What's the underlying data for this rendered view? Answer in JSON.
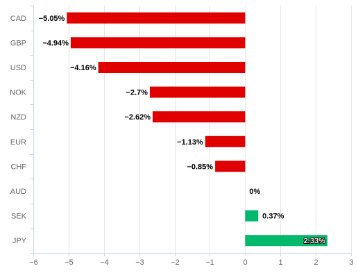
{
  "chart_data": {
    "type": "bar",
    "orientation": "horizontal",
    "categories": [
      "CAD",
      "GBP",
      "USD",
      "NOK",
      "NZD",
      "EUR",
      "CHF",
      "AUD",
      "SEK",
      "JPY"
    ],
    "values": [
      -5.05,
      -4.94,
      -4.16,
      -2.7,
      -2.62,
      -1.13,
      -0.85,
      0,
      0.37,
      2.33
    ],
    "data_labels": [
      "−5.05%",
      "−4.94%",
      "−4.16%",
      "−2.7%",
      "−2.62%",
      "−1.13%",
      "−0.85%",
      "0%",
      "0.37%",
      "2.33%"
    ],
    "x_ticks": [
      -6,
      -5,
      -4,
      -3,
      -2,
      -1,
      0,
      1,
      2,
      3
    ],
    "x_tick_labels": [
      "−6",
      "−5",
      "−4",
      "−3",
      "−2",
      "−1",
      "0",
      "1",
      "2",
      "3"
    ],
    "xlim": [
      -6,
      3
    ],
    "title": "",
    "xlabel": "",
    "ylabel": "",
    "grid": true,
    "legend": "none",
    "colors": {
      "negative": "#e00000",
      "positive": "#00b96b",
      "grid": "#e6e6e6",
      "axis": "#ccd6eb",
      "label": "#666666"
    }
  }
}
